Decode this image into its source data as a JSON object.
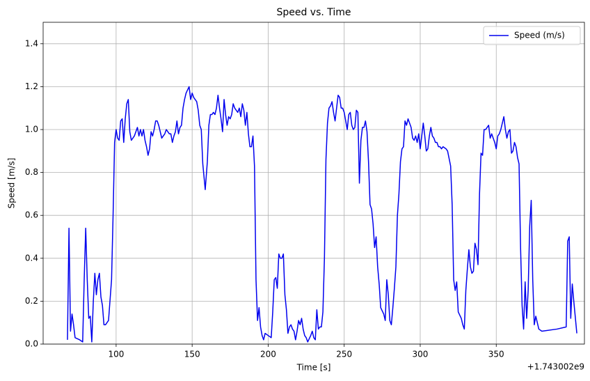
{
  "chart_data": {
    "type": "line",
    "title": "Speed vs. Time",
    "x_label": "Time [s]",
    "y_label": "Speed [m/s]",
    "x_offset_label": "+1.743002e9",
    "x": [
      68,
      69,
      70,
      71,
      72,
      73,
      76,
      78,
      79,
      80,
      81,
      82,
      83,
      84,
      85,
      86,
      87,
      88,
      89,
      90,
      91,
      92,
      93,
      95,
      97,
      98,
      99,
      100,
      101,
      102,
      103,
      104,
      105,
      106,
      107,
      108,
      109,
      110,
      111,
      112,
      114,
      115,
      116,
      117,
      118,
      119,
      120,
      121,
      122,
      123,
      124,
      125,
      126,
      127,
      128,
      129,
      130,
      132,
      133,
      134,
      135,
      136,
      137,
      138,
      139,
      140,
      141,
      142,
      143,
      144,
      145,
      146,
      148,
      149,
      150,
      151,
      152,
      153,
      154,
      155,
      156,
      157,
      158.6,
      160,
      161,
      162,
      163,
      164,
      165,
      166,
      167,
      168,
      169,
      170,
      171,
      172,
      173,
      174,
      175,
      176,
      177,
      178,
      179,
      180,
      181,
      182,
      183,
      184,
      185,
      186,
      187,
      188,
      189,
      190,
      191,
      192,
      193,
      194,
      195,
      196,
      197,
      198,
      200,
      202,
      203,
      204,
      205,
      206,
      207,
      208,
      209,
      210,
      211,
      212,
      213,
      214,
      215,
      216,
      217,
      218,
      219,
      220,
      221,
      222,
      223,
      224,
      225,
      226,
      228,
      229,
      230,
      231,
      232,
      233,
      234,
      235,
      236,
      237,
      238,
      239,
      240,
      241,
      242,
      243,
      244,
      245,
      246,
      247,
      248,
      249,
      250,
      251,
      252,
      253,
      254,
      255,
      256,
      257,
      258,
      259,
      260,
      261,
      262,
      263,
      264,
      265,
      266,
      267,
      268,
      269,
      270,
      271,
      272,
      273,
      274,
      276,
      277,
      278,
      279,
      280,
      281,
      282,
      283,
      284,
      285,
      286,
      287,
      288,
      289,
      290,
      291,
      292,
      293,
      294,
      295,
      296,
      297,
      298,
      299,
      300,
      301,
      302,
      303,
      304,
      305,
      306,
      307,
      308,
      309,
      310,
      311,
      312,
      313,
      314,
      315,
      317,
      318,
      320,
      321,
      322,
      323,
      324,
      325,
      327,
      328,
      329,
      330,
      331,
      332,
      333,
      334,
      335,
      336,
      337,
      338,
      339,
      340,
      341,
      342,
      343,
      344,
      345,
      346,
      347,
      348,
      349,
      350,
      351,
      352,
      353,
      355,
      356,
      357,
      358,
      359,
      360,
      361,
      362,
      363,
      364,
      365,
      366,
      367,
      368,
      369,
      370,
      371,
      372,
      373,
      374,
      375,
      376,
      378,
      380,
      390,
      396,
      397,
      398,
      399,
      400,
      401,
      403
    ],
    "series": [
      {
        "name": "Speed (m/s)",
        "color": "#0000ee",
        "values": [
          0.02,
          0.54,
          0.06,
          0.14,
          0.09,
          0.03,
          0.02,
          0.01,
          0.3,
          0.54,
          0.3,
          0.12,
          0.13,
          0.01,
          0.2,
          0.33,
          0.23,
          0.3,
          0.33,
          0.22,
          0.18,
          0.09,
          0.09,
          0.11,
          0.3,
          0.6,
          0.94,
          1.0,
          0.96,
          0.95,
          1.04,
          1.05,
          0.94,
          1.05,
          1.12,
          1.14,
          0.99,
          0.95,
          0.96,
          0.97,
          1.01,
          0.97,
          1.0,
          0.97,
          1.0,
          0.95,
          0.92,
          0.88,
          0.91,
          0.99,
          0.97,
          1.0,
          1.04,
          1.04,
          1.02,
          0.99,
          0.96,
          0.98,
          1.0,
          0.99,
          0.98,
          0.98,
          0.94,
          0.97,
          0.99,
          1.04,
          0.98,
          1.01,
          1.02,
          1.1,
          1.14,
          1.17,
          1.2,
          1.14,
          1.17,
          1.15,
          1.14,
          1.13,
          1.09,
          1.02,
          1.0,
          0.84,
          0.72,
          0.85,
          1.02,
          1.07,
          1.07,
          1.08,
          1.07,
          1.1,
          1.16,
          1.1,
          1.05,
          0.99,
          1.14,
          1.07,
          1.02,
          1.06,
          1.05,
          1.07,
          1.12,
          1.1,
          1.09,
          1.08,
          1.1,
          1.06,
          1.12,
          1.09,
          1.02,
          1.08,
          0.98,
          0.92,
          0.92,
          0.97,
          0.83,
          0.3,
          0.11,
          0.17,
          0.08,
          0.04,
          0.02,
          0.05,
          0.04,
          0.03,
          0.15,
          0.3,
          0.31,
          0.26,
          0.42,
          0.4,
          0.4,
          0.42,
          0.23,
          0.16,
          0.05,
          0.08,
          0.09,
          0.07,
          0.06,
          0.02,
          0.06,
          0.11,
          0.09,
          0.12,
          0.07,
          0.04,
          0.03,
          0.01,
          0.04,
          0.06,
          0.03,
          0.02,
          0.16,
          0.07,
          0.08,
          0.08,
          0.15,
          0.4,
          0.86,
          1.03,
          1.1,
          1.11,
          1.13,
          1.08,
          1.04,
          1.1,
          1.16,
          1.15,
          1.1,
          1.1,
          1.08,
          1.04,
          1.0,
          1.07,
          1.08,
          1.02,
          1.0,
          1.01,
          1.09,
          1.08,
          0.75,
          0.95,
          1.01,
          1.01,
          1.04,
          0.99,
          0.85,
          0.65,
          0.63,
          0.56,
          0.45,
          0.5,
          0.36,
          0.28,
          0.17,
          0.14,
          0.11,
          0.3,
          0.23,
          0.11,
          0.09,
          0.17,
          0.26,
          0.36,
          0.6,
          0.7,
          0.85,
          0.91,
          0.92,
          1.04,
          1.02,
          1.05,
          1.03,
          1.01,
          0.96,
          0.95,
          0.97,
          0.94,
          0.98,
          0.91,
          0.97,
          1.03,
          0.97,
          0.9,
          0.91,
          0.97,
          1.01,
          0.97,
          0.96,
          0.94,
          0.94,
          0.92,
          0.92,
          0.91,
          0.92,
          0.91,
          0.9,
          0.83,
          0.65,
          0.3,
          0.25,
          0.29,
          0.15,
          0.12,
          0.09,
          0.07,
          0.25,
          0.35,
          0.44,
          0.36,
          0.33,
          0.34,
          0.47,
          0.44,
          0.37,
          0.7,
          0.89,
          0.88,
          1.0,
          1.0,
          1.01,
          1.02,
          0.96,
          0.98,
          0.96,
          0.94,
          0.91,
          0.97,
          0.98,
          1.0,
          1.06,
          1.0,
          0.96,
          0.99,
          1.0,
          0.89,
          0.9,
          0.94,
          0.92,
          0.87,
          0.84,
          0.45,
          0.18,
          0.07,
          0.29,
          0.12,
          0.25,
          0.55,
          0.67,
          0.3,
          0.09,
          0.13,
          0.07,
          0.06,
          0.07,
          0.08,
          0.48,
          0.5,
          0.12,
          0.28,
          0.2,
          0.05
        ]
      }
    ],
    "xlim": [
      52,
      408
    ],
    "ylim": [
      0,
      1.5
    ],
    "xticks": [
      100,
      150,
      200,
      250,
      300,
      350
    ],
    "yticks": [
      {
        "value": 0,
        "label": "0.0"
      },
      0.2,
      0.4,
      0.6,
      0.8,
      {
        "value": 1,
        "label": "1.0"
      },
      1.2,
      1.4
    ],
    "grid": true,
    "legend": "upper right"
  }
}
